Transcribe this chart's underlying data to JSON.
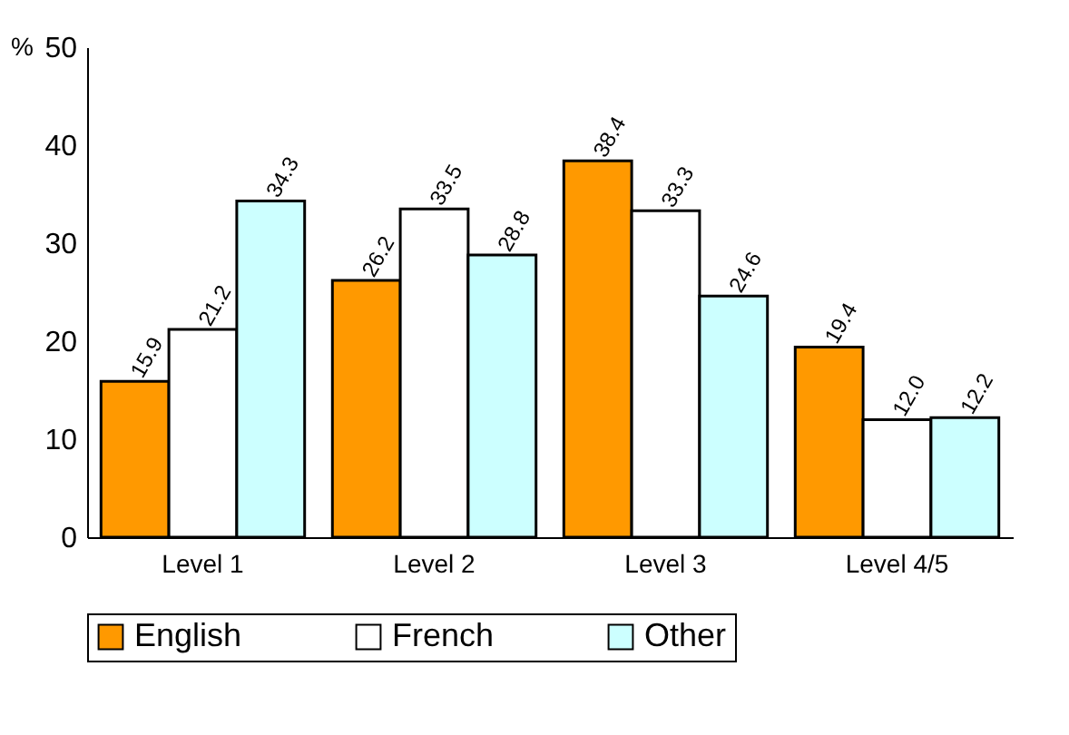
{
  "chart_data": {
    "type": "bar",
    "ylabel": "%",
    "categories": [
      "Level 1",
      "Level 2",
      "Level 3",
      "Level 4/5"
    ],
    "series": [
      {
        "name": "English",
        "color": "#ff9900",
        "values": [
          15.9,
          26.2,
          38.4,
          19.4
        ],
        "value_labels": [
          "15.9",
          "26.2",
          "38.4",
          "19.4"
        ]
      },
      {
        "name": "French",
        "color": "#ffffff",
        "values": [
          21.2,
          33.5,
          33.3,
          12.0
        ],
        "value_labels": [
          "21.2",
          "33.5",
          "33.3",
          "12.0"
        ]
      },
      {
        "name": "Other",
        "color": "#ccffff",
        "values": [
          34.3,
          28.8,
          24.6,
          12.2
        ],
        "value_labels": [
          "34.3",
          "28.8",
          "24.6",
          "12.2"
        ]
      }
    ],
    "ylim": [
      0,
      50
    ],
    "yticks": [
      0,
      10,
      20,
      30,
      40,
      50
    ],
    "grid": false,
    "legend": "bottom"
  }
}
